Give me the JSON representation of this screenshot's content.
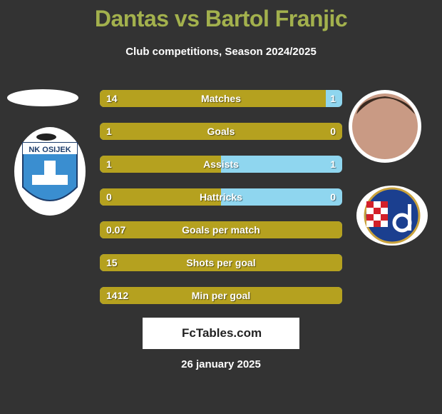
{
  "title": "Dantas vs Bartol Franjic",
  "subtitle": "Club competitions, Season 2024/2025",
  "rows": [
    {
      "label": "Matches",
      "left": 14,
      "right": 1
    },
    {
      "label": "Goals",
      "left": 1,
      "right": 0
    },
    {
      "label": "Assists",
      "left": 1,
      "right": 1
    },
    {
      "label": "Hattricks",
      "left": 0,
      "right": 0
    },
    {
      "label": "Goals per match",
      "left": 0.07
    },
    {
      "label": "Shots per goal",
      "left": 15
    },
    {
      "label": "Min per goal",
      "left": 1412
    }
  ],
  "left_logo_text": "NK OSIJEK",
  "brand": "FcTables.com",
  "date": "26 january 2025"
}
